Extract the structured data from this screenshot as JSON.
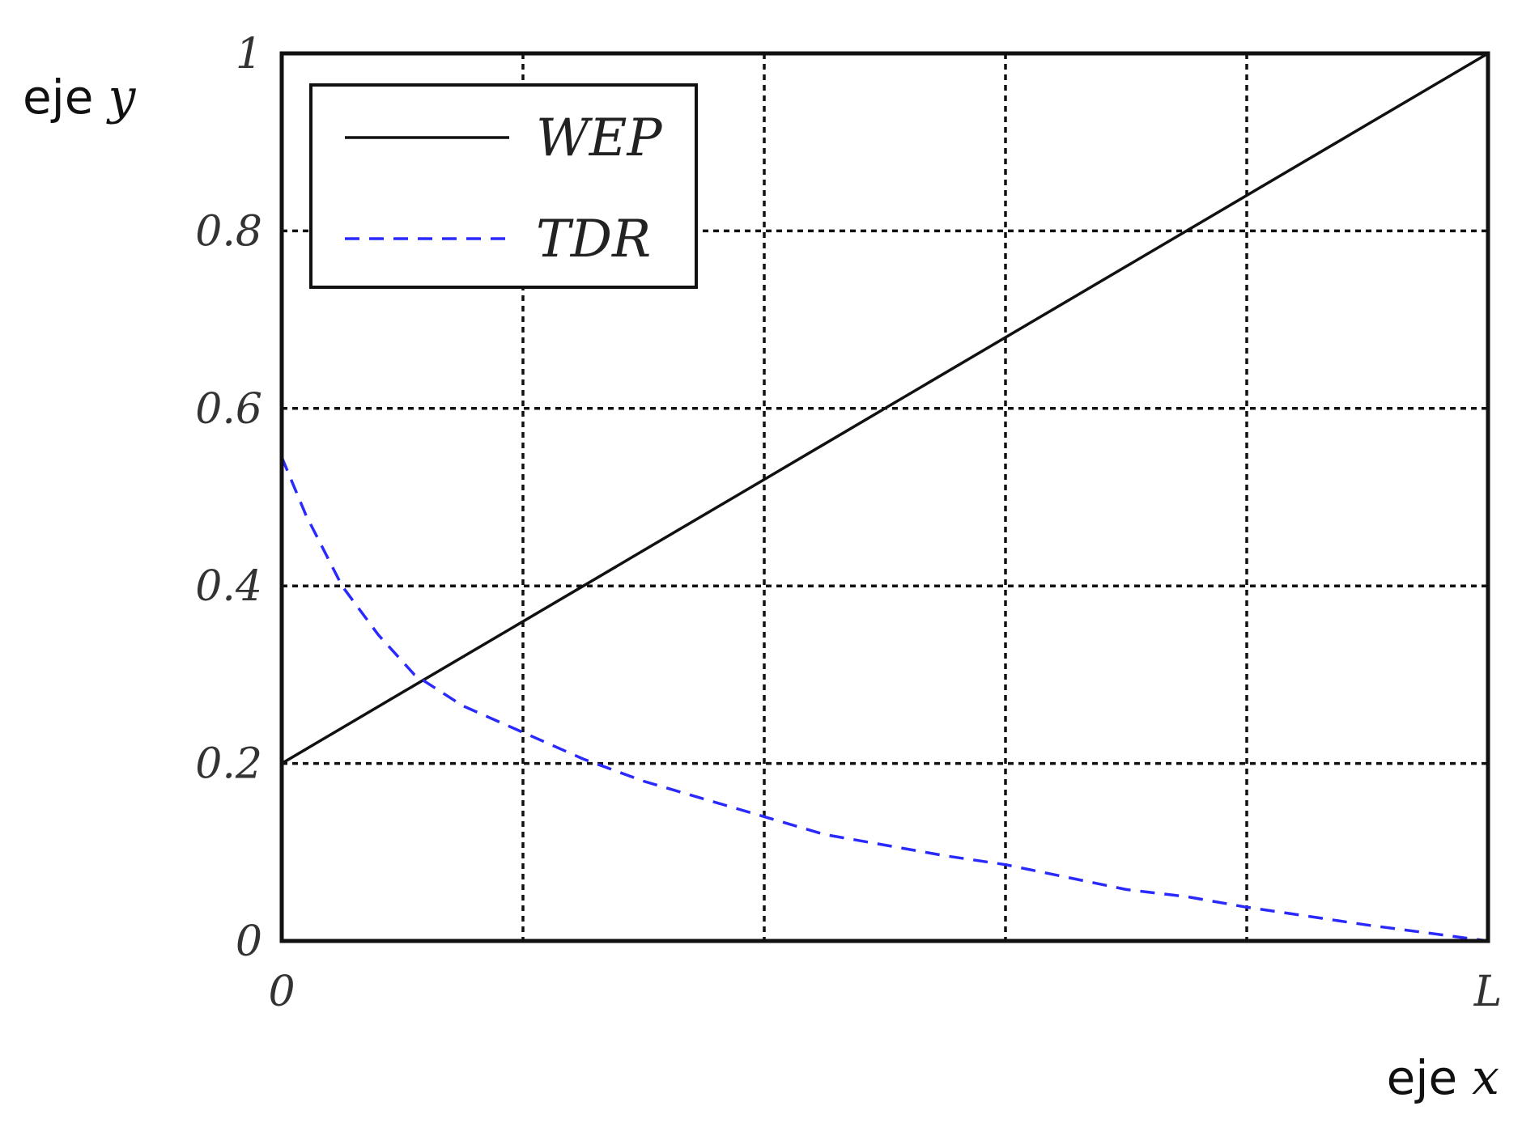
{
  "chart_data": {
    "type": "line",
    "xlabel": {
      "prefix": "eje",
      "var": "x"
    },
    "ylabel": {
      "prefix": "eje",
      "var": "y"
    },
    "xlim": [
      0,
      1
    ],
    "ylim": [
      0,
      1
    ],
    "x_ticks": [
      {
        "value": 0,
        "label": "0"
      },
      {
        "value": 1,
        "label": "L"
      }
    ],
    "x_gridlines": [
      0.2,
      0.4,
      0.6,
      0.8
    ],
    "y_ticks": [
      {
        "value": 0,
        "label": "0"
      },
      {
        "value": 0.2,
        "label": "0.2"
      },
      {
        "value": 0.4,
        "label": "0.4"
      },
      {
        "value": 0.6,
        "label": "0.6"
      },
      {
        "value": 0.8,
        "label": "0.8"
      },
      {
        "value": 1,
        "label": "1"
      }
    ],
    "grid": true,
    "legend_position": "top-left",
    "series": [
      {
        "name": "WEP",
        "color": "#111111",
        "style": "solid",
        "x": [
          0,
          0.1,
          0.2,
          0.3,
          0.4,
          0.5,
          0.6,
          0.7,
          0.8,
          0.9,
          1.0
        ],
        "y": [
          0.2,
          0.28,
          0.36,
          0.44,
          0.52,
          0.6,
          0.68,
          0.76,
          0.84,
          0.92,
          1.0
        ]
      },
      {
        "name": "TDR",
        "color": "#2a2aff",
        "style": "dashed",
        "x": [
          0,
          0.02,
          0.05,
          0.08,
          0.11,
          0.15,
          0.2,
          0.25,
          0.3,
          0.35,
          0.4,
          0.45,
          0.5,
          0.55,
          0.6,
          0.65,
          0.7,
          0.75,
          0.8,
          0.85,
          0.9,
          0.95,
          1.0
        ],
        "y": [
          0.545,
          0.48,
          0.4,
          0.345,
          0.3,
          0.265,
          0.235,
          0.205,
          0.18,
          0.16,
          0.14,
          0.12,
          0.108,
          0.096,
          0.086,
          0.072,
          0.058,
          0.05,
          0.038,
          0.028,
          0.018,
          0.009,
          0.0
        ]
      }
    ]
  }
}
